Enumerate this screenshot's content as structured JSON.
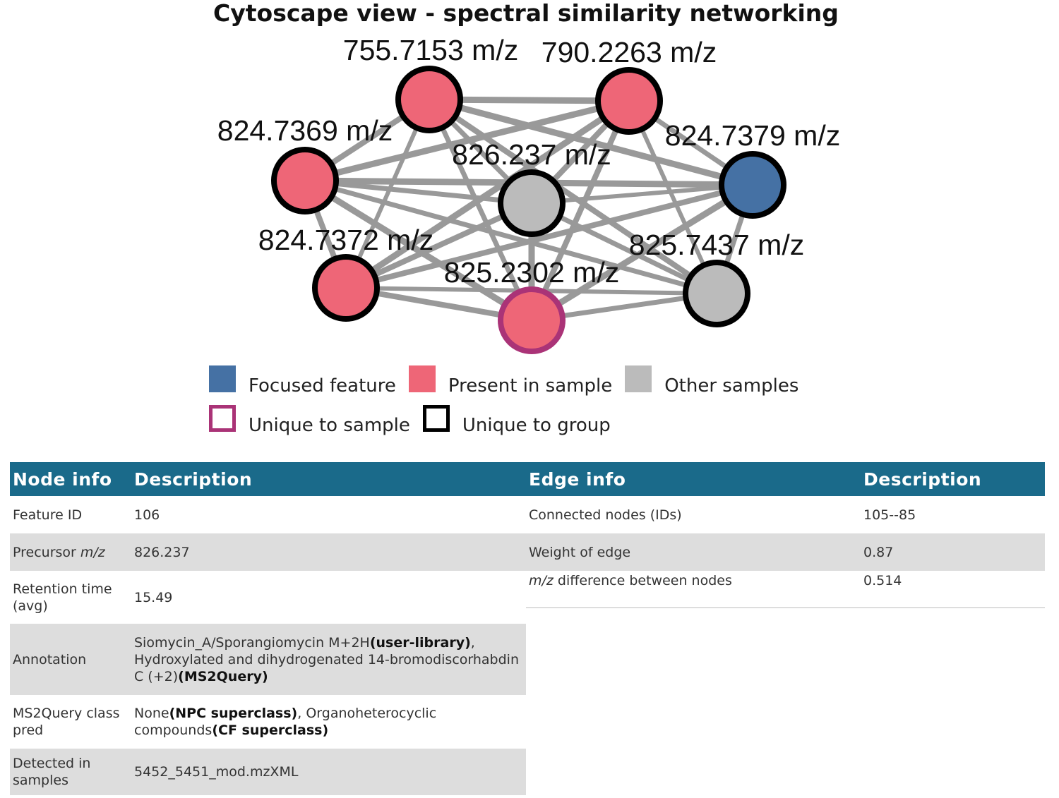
{
  "title": "Cytoscape view - spectral similarity networking",
  "colors": {
    "focused": "#4571a4",
    "present": "#ee6677",
    "other": "#bbbbbb",
    "unique_sample_border": "#aa3377",
    "unique_group_border": "#000000",
    "edge": "#999999",
    "table_header": "#1a6a8a"
  },
  "network": {
    "nodes": [
      {
        "id": "n755",
        "label": "755.7153 m/z",
        "color": "present",
        "border": "group"
      },
      {
        "id": "n790",
        "label": "790.2263 m/z",
        "color": "present",
        "border": "group"
      },
      {
        "id": "n824_69",
        "label": "824.7369 m/z",
        "color": "present",
        "border": "group"
      },
      {
        "id": "n826",
        "label": "826.237 m/z",
        "color": "other",
        "border": "group"
      },
      {
        "id": "n824_79",
        "label": "824.7379 m/z",
        "color": "focused",
        "border": "group"
      },
      {
        "id": "n824_72",
        "label": "824.7372 m/z",
        "color": "present",
        "border": "group"
      },
      {
        "id": "n825_74",
        "label": "825.7437 m/z",
        "color": "other",
        "border": "group"
      },
      {
        "id": "n825_23",
        "label": "825.2302 m/z",
        "color": "present",
        "border": "sample"
      }
    ],
    "edges": [
      [
        "n755",
        "n790"
      ],
      [
        "n755",
        "n824_69"
      ],
      [
        "n755",
        "n826"
      ],
      [
        "n755",
        "n824_79"
      ],
      [
        "n755",
        "n824_72"
      ],
      [
        "n755",
        "n825_74"
      ],
      [
        "n755",
        "n825_23"
      ],
      [
        "n790",
        "n824_69"
      ],
      [
        "n790",
        "n826"
      ],
      [
        "n790",
        "n824_79"
      ],
      [
        "n790",
        "n824_72"
      ],
      [
        "n790",
        "n825_74"
      ],
      [
        "n790",
        "n825_23"
      ],
      [
        "n824_69",
        "n826"
      ],
      [
        "n824_69",
        "n824_79"
      ],
      [
        "n824_69",
        "n824_72"
      ],
      [
        "n824_69",
        "n825_74"
      ],
      [
        "n824_69",
        "n825_23"
      ],
      [
        "n826",
        "n824_79"
      ],
      [
        "n826",
        "n824_72"
      ],
      [
        "n826",
        "n825_74"
      ],
      [
        "n826",
        "n825_23"
      ],
      [
        "n824_79",
        "n824_72"
      ],
      [
        "n824_79",
        "n825_74"
      ],
      [
        "n824_79",
        "n825_23"
      ],
      [
        "n824_72",
        "n825_74"
      ],
      [
        "n824_72",
        "n825_23"
      ],
      [
        "n825_74",
        "n825_23"
      ]
    ]
  },
  "legend": {
    "focused": "Focused feature",
    "present": "Present in sample",
    "other": "Other samples",
    "unique_sample": "Unique to sample",
    "unique_group": "Unique to group"
  },
  "node_table": {
    "headers": [
      "Node info",
      "Description"
    ],
    "rows": [
      {
        "label": "Feature ID",
        "value": "106"
      },
      {
        "label_pre": "Precursor ",
        "label_em": "m/z",
        "value": "826.237"
      },
      {
        "label": "Retention time (avg)",
        "value": "15.49"
      },
      {
        "label": "Annotation",
        "value_parts": [
          {
            "t": "Siomycin_A/Sporangiomycin M+2H"
          },
          {
            "t": "(user-library)",
            "b": true
          },
          {
            "t": ", Hydroxylated and dihydrogenated 14-bromodiscorhabdin C (+2)"
          },
          {
            "t": "(MS2Query)",
            "b": true
          }
        ]
      },
      {
        "label": "MS2Query class pred",
        "value_parts": [
          {
            "t": "None"
          },
          {
            "t": "(NPC superclass)",
            "b": true
          },
          {
            "t": ", Organoheterocyclic compounds"
          },
          {
            "t": "(CF superclass)",
            "b": true
          }
        ]
      },
      {
        "label": "Detected in samples",
        "value": "5452_5451_mod.mzXML"
      }
    ]
  },
  "edge_table": {
    "headers": [
      "Edge info",
      "Description"
    ],
    "rows": [
      {
        "label": "Connected nodes (IDs)",
        "value": "105--85"
      },
      {
        "label": "Weight of edge",
        "value": "0.87"
      },
      {
        "label_em": "m/z",
        "label_post": " difference between nodes",
        "value": "0.514"
      }
    ]
  }
}
